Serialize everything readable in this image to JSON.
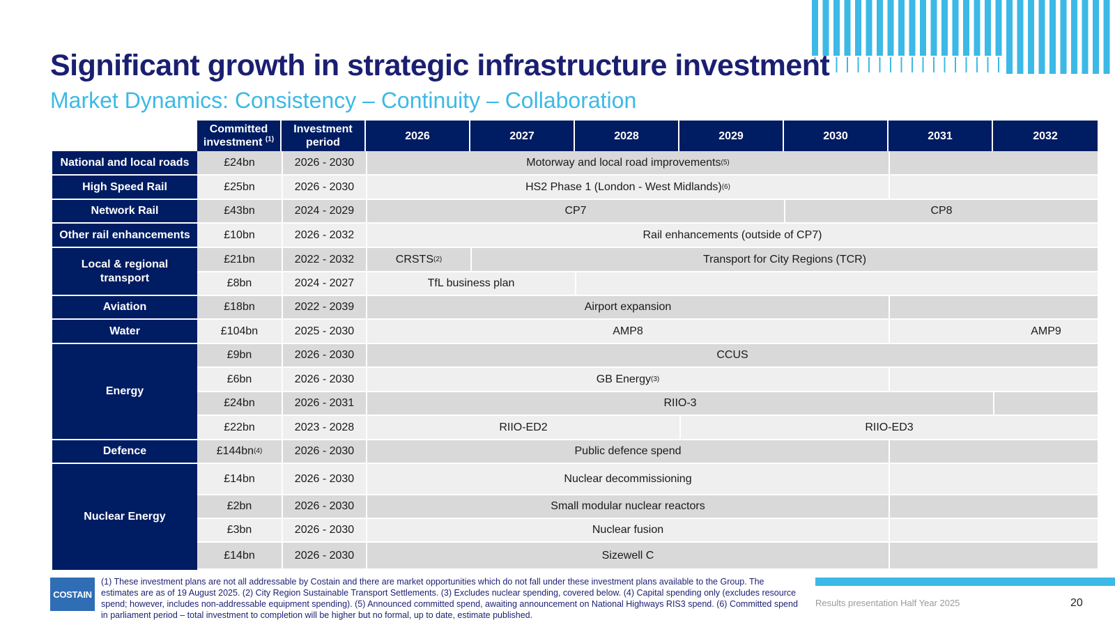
{
  "title": "Significant growth in strategic infrastructure investment",
  "subtitle": "Market Dynamics: Consistency – Continuity – Collaboration",
  "table": {
    "headers": {
      "committed_line1": "Committed",
      "committed_line2": "investment",
      "committed_sup": "(1)",
      "period_line1": "Investment",
      "period_line2": "period",
      "years": [
        "2026",
        "2027",
        "2028",
        "2029",
        "2030",
        "2031",
        "2032"
      ]
    },
    "categories": {
      "roads": "National and local roads",
      "hsr": "High Speed Rail",
      "network_rail": "Network Rail",
      "other_rail": "Other rail enhancements",
      "local_line1": "Local & regional",
      "local_line2": "transport",
      "aviation": "Aviation",
      "water": "Water",
      "energy": "Energy",
      "defence": "Defence",
      "nuclear": "Nuclear Energy"
    },
    "rows": [
      {
        "investment": "£24bn",
        "period": "2026 - 2030",
        "bars": [
          {
            "label": "Motorway and local road improvements",
            "sup": "(5)"
          }
        ]
      },
      {
        "investment": "£25bn",
        "period": "2026 - 2030",
        "bars": [
          {
            "label": "HS2 Phase 1 (London - West Midlands)",
            "sup": "(6)"
          }
        ]
      },
      {
        "investment": "£43bn",
        "period": "2024 - 2029",
        "bars": [
          {
            "label": "CP7"
          },
          {
            "label": "CP8"
          }
        ]
      },
      {
        "investment": "£10bn",
        "period": "2026 - 2032",
        "bars": [
          {
            "label": "Rail enhancements (outside of CP7)"
          }
        ]
      },
      {
        "investment": "£21bn",
        "period": "2022 - 2032",
        "bars": [
          {
            "label": "CRSTS",
            "sup": "(2)"
          },
          {
            "label": "Transport for City Regions (TCR)"
          }
        ]
      },
      {
        "investment": "£8bn",
        "period": "2024 - 2027",
        "bars": [
          {
            "label": "TfL business plan"
          }
        ]
      },
      {
        "investment": "£18bn",
        "period": "2022 - 2039",
        "bars": [
          {
            "label": "Airport expansion"
          }
        ]
      },
      {
        "investment": "£104bn",
        "period": "2025 - 2030",
        "bars": [
          {
            "label": "AMP8"
          },
          {
            "label": "AMP9"
          }
        ]
      },
      {
        "investment": "£9bn",
        "period": "2026 - 2030",
        "bars": [
          {
            "label": "CCUS"
          }
        ]
      },
      {
        "investment": "£6bn",
        "period": "2026 - 2030",
        "bars": [
          {
            "label": "GB Energy",
            "sup": "(3)"
          }
        ]
      },
      {
        "investment": "£24bn",
        "period": "2026 - 2031",
        "bars": [
          {
            "label": "RIIO-3"
          }
        ]
      },
      {
        "investment": "£22bn",
        "period": "2023 - 2028",
        "bars": [
          {
            "label": "RIIO-ED2"
          },
          {
            "label": "RIIO-ED3"
          }
        ]
      },
      {
        "investment": "£144bn",
        "investment_sup": "(4)",
        "period": "2026 - 2030",
        "bars": [
          {
            "label": "Public defence spend"
          }
        ]
      },
      {
        "investment": "£14bn",
        "period": "2026 - 2030",
        "bars": [
          {
            "label": "Nuclear decommissioning"
          }
        ]
      },
      {
        "investment": "£2bn",
        "period": "2026 - 2030",
        "bars": [
          {
            "label": "Small modular nuclear reactors"
          }
        ]
      },
      {
        "investment": "£3bn",
        "period": "2026 - 2030",
        "bars": [
          {
            "label": "Nuclear fusion"
          }
        ]
      },
      {
        "investment": "£14bn",
        "period": "2026 - 2030",
        "bars": [
          {
            "label": "Sizewell C"
          }
        ]
      }
    ]
  },
  "footer": {
    "logo_text": "COSTAIN",
    "footnotes": "(1) These investment plans are not all addressable by Costain and there are market opportunities which do not fall under these investment plans available to the Group. The estimates are as of 19 August 2025. (2) City Region Sustainable Transport Settlements. (3) Excludes nuclear spending, covered below. (4) Capital spending only (excludes resource spend; however, includes non-addressable equipment spending). (5) Announced committed spend, awaiting announcement on National Highways RIS3 spend. (6) Committed spend in parliament period – total investment to completion will be higher but no formal, up to date, estimate published.",
    "label": "Results presentation Half Year 2025",
    "page_number": "20"
  },
  "colors": {
    "navy": "#001c62",
    "title": "#1a1f71",
    "accent": "#3cb9e6",
    "row_dark": "#d9d9d9",
    "row_light": "#efefef"
  }
}
